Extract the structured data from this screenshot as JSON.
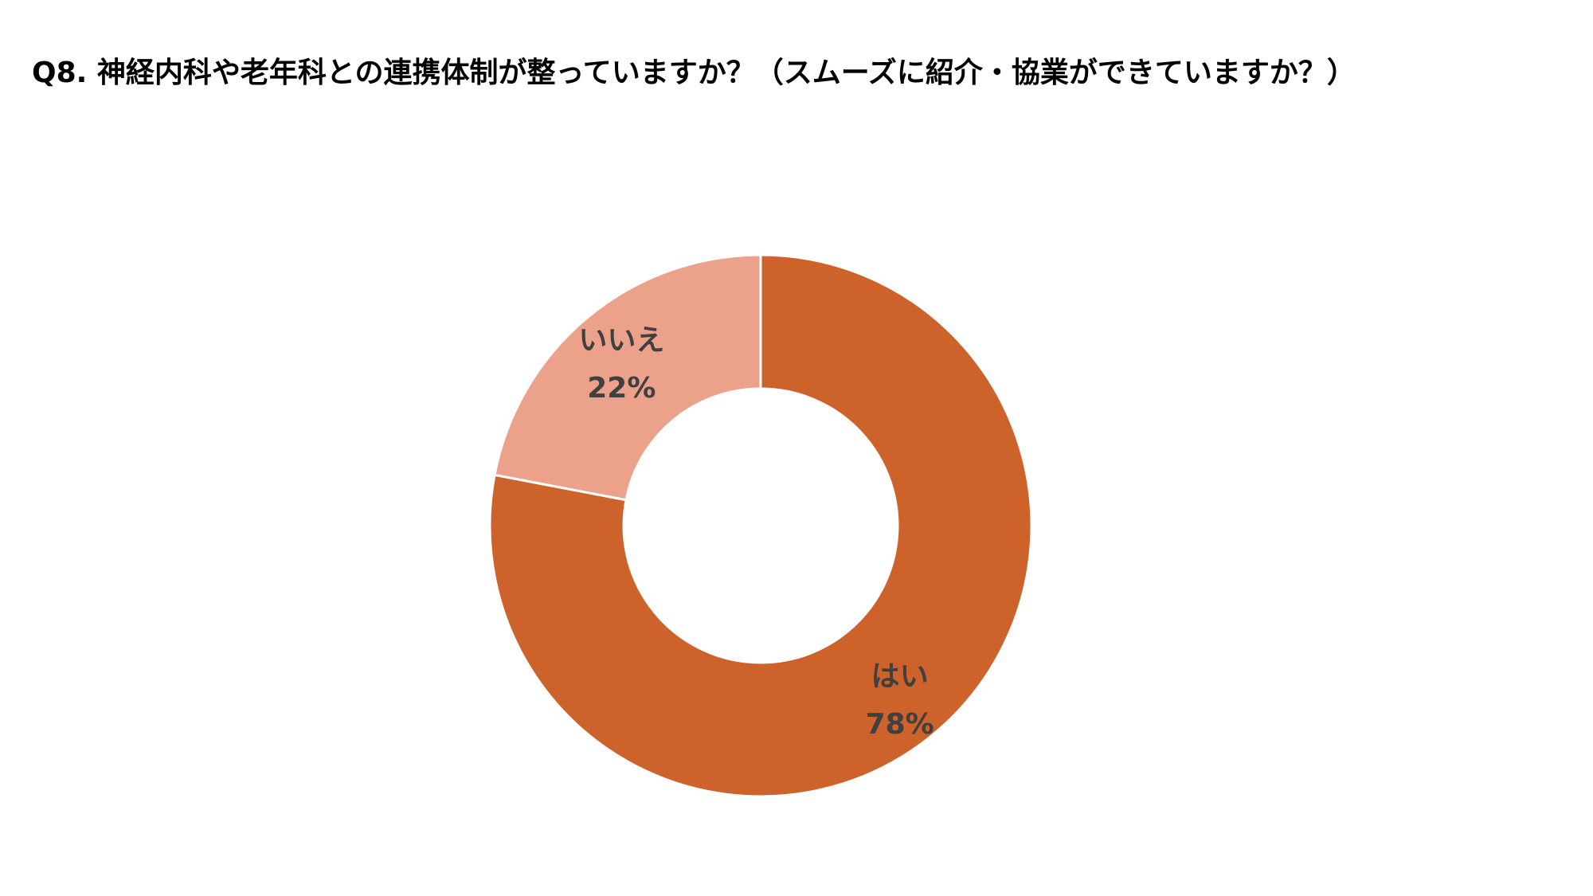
{
  "chart_data": {
    "type": "pie",
    "style": "donut",
    "title": "Q8. 神経内科や老年科との連携体制が整っていますか？（スムーズに紹介・協業ができていますか？）",
    "slices": [
      {
        "label": "はい",
        "value": 78,
        "value_label": "78%",
        "color": "#CD622A"
      },
      {
        "label": "いいえ",
        "value": 22,
        "value_label": "22%",
        "color": "#ECA18A"
      }
    ],
    "start": "12 o'clock",
    "direction": "clockwise",
    "legend": "none",
    "label_color": "#404040"
  }
}
